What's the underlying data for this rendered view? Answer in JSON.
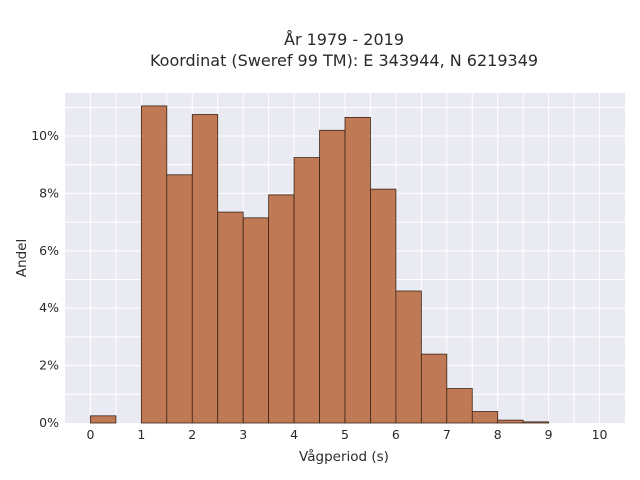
{
  "chart_data": {
    "type": "bar",
    "title_line1": "År 1979 - 2019",
    "title_line2": "Koordinat (Sweref 99 TM): E 343944, N 6219349",
    "xlabel": "Vågperiod (s)",
    "ylabel": "Andel",
    "xlim": [
      -0.5,
      10.5
    ],
    "ylim": [
      0,
      11.5
    ],
    "x_ticks": [
      0,
      1,
      2,
      3,
      4,
      5,
      6,
      7,
      8,
      9,
      10
    ],
    "y_ticks": [
      0,
      2,
      4,
      6,
      8,
      10
    ],
    "y_tick_suffix": "%",
    "grid": true,
    "bin_width": 0.5,
    "bins": [
      {
        "x0": 0.0,
        "value": 0.25
      },
      {
        "x0": 0.5,
        "value": 0.0
      },
      {
        "x0": 1.0,
        "value": 11.05
      },
      {
        "x0": 1.5,
        "value": 8.65
      },
      {
        "x0": 2.0,
        "value": 10.75
      },
      {
        "x0": 2.5,
        "value": 7.35
      },
      {
        "x0": 3.0,
        "value": 7.15
      },
      {
        "x0": 3.5,
        "value": 7.95
      },
      {
        "x0": 4.0,
        "value": 9.25
      },
      {
        "x0": 4.5,
        "value": 10.2
      },
      {
        "x0": 5.0,
        "value": 10.65
      },
      {
        "x0": 5.5,
        "value": 8.15
      },
      {
        "x0": 6.0,
        "value": 4.6
      },
      {
        "x0": 6.5,
        "value": 2.4
      },
      {
        "x0": 7.0,
        "value": 1.2
      },
      {
        "x0": 7.5,
        "value": 0.4
      },
      {
        "x0": 8.0,
        "value": 0.1
      },
      {
        "x0": 8.5,
        "value": 0.04
      }
    ],
    "colors": {
      "bar_fill": "#bf7a55",
      "bar_edge": "#3b2418",
      "plot_bg": "#eaeaf2",
      "grid": "#ffffff"
    }
  }
}
